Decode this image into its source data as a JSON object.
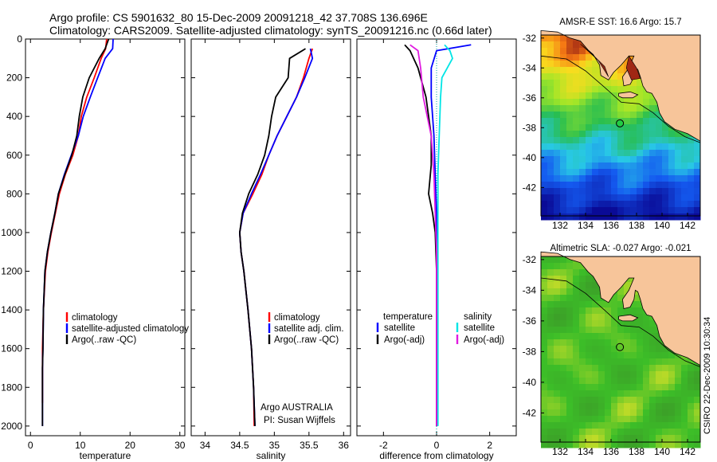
{
  "header": {
    "title_line1": "Argo profile: CS 5901632_80 15-Dec-2009 20091218_42 37.708S 136.696E",
    "title_line2": "Climatology: CARS2009. Satellite-adjusted climatology: synTS_20091216.nc (0.66d later)"
  },
  "colors": {
    "climatology": "#ff0000",
    "satellite": "#0000ff",
    "argo": "#000000",
    "salinity_satellite": "#00e5e5",
    "salinity_argo": "#e01be0",
    "land": "#f7c59a"
  },
  "chart_data": [
    {
      "type": "line",
      "id": "temperature",
      "xlabel": "temperature",
      "ylabel": "",
      "xlim": [
        -1,
        31
      ],
      "ylim": [
        2050,
        0
      ],
      "xticks": [
        0,
        10,
        20,
        30
      ],
      "yticks": [
        0,
        200,
        400,
        600,
        800,
        1000,
        1200,
        1400,
        1600,
        1800,
        2000
      ],
      "legend_location": "lower-left",
      "series": [
        {
          "name": "climatology",
          "color": "red",
          "x": [
            15.3,
            15.1,
            14.2,
            12.8,
            11.3,
            10.2,
            9.6,
            8.5,
            7.0,
            5.8,
            5.0,
            4.2,
            3.5,
            3.0,
            2.6,
            2.4,
            2.4,
            2.4,
            2.4
          ],
          "y": [
            0,
            50,
            100,
            200,
            300,
            400,
            500,
            600,
            700,
            800,
            900,
            1000,
            1100,
            1200,
            1400,
            1600,
            1700,
            1800,
            1880
          ]
        },
        {
          "name": "satellite-adjusted climatology",
          "color": "blue",
          "x": [
            16.6,
            16.5,
            15.0,
            13.5,
            12.0,
            10.6,
            9.6,
            8.2,
            6.8,
            5.6,
            4.9,
            4.1,
            3.4,
            2.9,
            2.6,
            2.5,
            2.4,
            2.4,
            2.4
          ],
          "y": [
            0,
            50,
            100,
            200,
            300,
            400,
            500,
            600,
            700,
            800,
            900,
            1000,
            1100,
            1200,
            1400,
            1600,
            1700,
            1800,
            2000
          ]
        },
        {
          "name": "Argo(..raw -QC)",
          "color": "black",
          "x": [
            15.7,
            15.0,
            13.8,
            11.8,
            10.5,
            9.8,
            9.3,
            8.3,
            6.9,
            5.6,
            4.9,
            4.1,
            3.4,
            2.9,
            2.6,
            2.5,
            2.4,
            2.4,
            2.4
          ],
          "y": [
            0,
            50,
            100,
            200,
            300,
            400,
            500,
            600,
            700,
            800,
            900,
            1000,
            1100,
            1200,
            1400,
            1600,
            1700,
            1800,
            2000
          ]
        }
      ]
    },
    {
      "type": "line",
      "id": "salinity",
      "xlabel": "salinity",
      "ylabel": "",
      "xlim": [
        33.8,
        36.1
      ],
      "ylim": [
        2050,
        0
      ],
      "xticks": [
        34,
        34.5,
        35,
        35.5,
        36
      ],
      "legend_location": "lower-left",
      "series": [
        {
          "name": "climatology",
          "color": "red",
          "x": [
            35.55,
            35.5,
            35.42,
            35.32,
            35.18,
            35.04,
            34.92,
            34.82,
            34.69,
            34.55,
            34.5,
            34.52,
            34.56,
            34.62,
            34.67,
            34.7,
            34.71
          ],
          "y": [
            50,
            100,
            200,
            300,
            400,
            500,
            600,
            700,
            800,
            900,
            1000,
            1100,
            1200,
            1400,
            1600,
            1800,
            2000
          ]
        },
        {
          "name": "satellite adj. clim.",
          "color": "blue",
          "x": [
            35.52,
            35.55,
            35.44,
            35.32,
            35.18,
            35.04,
            34.92,
            34.8,
            34.67,
            34.55,
            34.5,
            34.52,
            34.56,
            34.62,
            34.67,
            34.7,
            34.72
          ],
          "y": [
            50,
            100,
            200,
            300,
            400,
            500,
            600,
            700,
            800,
            900,
            1000,
            1100,
            1200,
            1400,
            1600,
            1800,
            2000
          ]
        },
        {
          "name": "Argo(..raw -QC)",
          "color": "black",
          "x": [
            35.45,
            35.22,
            35.2,
            35.02,
            34.96,
            34.92,
            34.86,
            34.76,
            34.63,
            34.54,
            34.5,
            34.52,
            34.56,
            34.62,
            34.67,
            34.7,
            34.72
          ],
          "y": [
            50,
            100,
            200,
            300,
            400,
            500,
            600,
            700,
            800,
            900,
            1000,
            1100,
            1200,
            1400,
            1600,
            1800,
            2000
          ]
        }
      ],
      "annotations": [
        "Argo AUSTRALIA",
        "PI: Susan Wijffels"
      ]
    },
    {
      "type": "line",
      "id": "difference",
      "xlabel": "difference from climatology",
      "ylabel": "",
      "xlim": [
        -3,
        3
      ],
      "ylim": [
        2050,
        0
      ],
      "xticks": [
        -2,
        0,
        2
      ],
      "legend_groups": [
        "temperature",
        "salinity"
      ],
      "series": [
        {
          "name": "satellite",
          "group": "temperature",
          "color": "blue",
          "x": [
            1.3,
            0.0,
            -0.2,
            -0.2,
            -0.1,
            -0.05,
            0.0,
            0.0,
            0.0,
            0.0,
            0.0
          ],
          "y": [
            30,
            60,
            150,
            300,
            500,
            700,
            900,
            1100,
            1400,
            1700,
            2000
          ]
        },
        {
          "name": "Argo(-adj)",
          "group": "temperature",
          "color": "black",
          "x": [
            -1.2,
            -1.0,
            -0.7,
            -0.4,
            -0.2,
            -0.2,
            -0.3,
            -0.15,
            -0.05,
            0.0,
            0.0,
            0.0,
            0.0
          ],
          "y": [
            30,
            60,
            150,
            300,
            500,
            650,
            800,
            900,
            1000,
            1200,
            1500,
            1800,
            2000
          ]
        },
        {
          "name": "satellite",
          "group": "salinity",
          "color": "cyan",
          "x": [
            0.3,
            0.5,
            0.6,
            0.2,
            0.15,
            0.1,
            0.05,
            0.05,
            0.05,
            0.05
          ],
          "y": [
            30,
            60,
            100,
            200,
            300,
            500,
            700,
            1000,
            1500,
            2000
          ]
        },
        {
          "name": "Argo(-adj)",
          "group": "salinity",
          "color": "magenta",
          "x": [
            -1.0,
            -0.7,
            -0.6,
            -0.5,
            -0.2,
            -0.1,
            -0.05,
            0.0,
            0.0,
            0.0
          ],
          "y": [
            30,
            60,
            150,
            300,
            500,
            700,
            900,
            1100,
            1500,
            2000
          ]
        }
      ]
    },
    {
      "type": "heatmap",
      "id": "sst_map",
      "title": "AMSR-E SST: 16.6 Argo: 15.7",
      "xlim": [
        130.5,
        143
      ],
      "ylim": [
        -43.9,
        -31.8
      ],
      "xticks": [
        132,
        134,
        136,
        138,
        140,
        142
      ],
      "yticks": [
        -32,
        -34,
        -36,
        -38,
        -40,
        -42
      ],
      "marker": {
        "lon": 136.696,
        "lat": -37.708
      }
    },
    {
      "type": "heatmap",
      "id": "sla_map",
      "title": "Altimetric SLA: -0.027 Argo: -0.021",
      "xlim": [
        130.5,
        143
      ],
      "ylim": [
        -43.9,
        -31.8
      ],
      "xticks": [
        132,
        134,
        136,
        138,
        140,
        142
      ],
      "yticks": [
        -32,
        -34,
        -36,
        -38,
        -40,
        -42
      ],
      "marker": {
        "lon": 136.696,
        "lat": -37.708
      }
    }
  ],
  "footer": {
    "credit": "CSIRO 22-Dec-2009 10:30:34"
  }
}
